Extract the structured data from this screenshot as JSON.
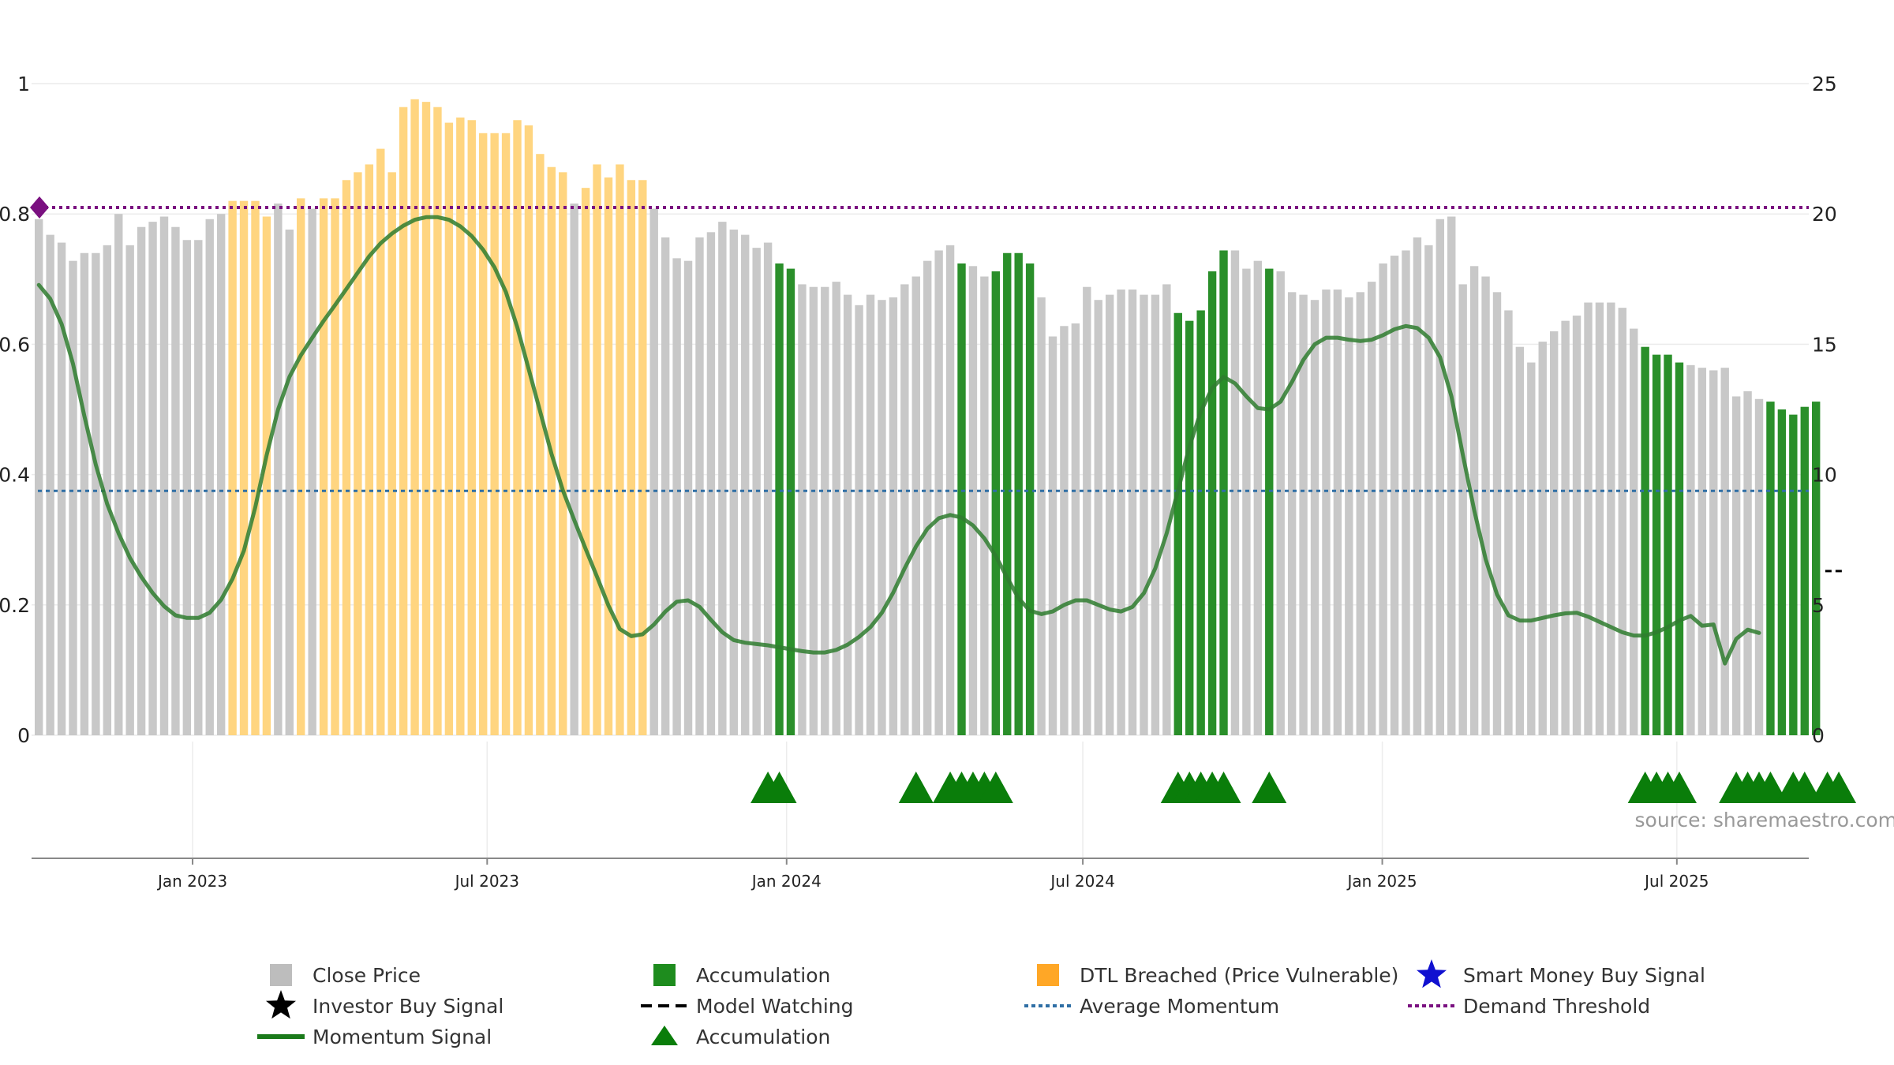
{
  "source_text": "source: sharemaestro.com",
  "chart_data": {
    "type": "bar",
    "left_axis": {
      "ticks": [
        "0",
        "0.2",
        "0.4",
        "0.6",
        "0.8",
        "1"
      ],
      "range": [
        0,
        1
      ]
    },
    "right_axis": {
      "ticks": [
        "0",
        "5",
        "10",
        "15",
        "20",
        "25"
      ],
      "range": [
        0,
        25
      ]
    },
    "x_ticks": [
      {
        "label": "Jan 2023",
        "date": "2023-01-01"
      },
      {
        "label": "Jul 2023",
        "date": "2023-07-01"
      },
      {
        "label": "Jan 2024",
        "date": "2024-01-01"
      },
      {
        "label": "Jul 2024",
        "date": "2024-07-01"
      },
      {
        "label": "Jan 2025",
        "date": "2025-01-01"
      },
      {
        "label": "Jul 2025",
        "date": "2025-07-01"
      }
    ],
    "date_range": [
      "2022-09-26",
      "2025-09-22"
    ],
    "close_price": [
      19.8,
      19.2,
      18.9,
      18.2,
      18.5,
      18.5,
      18.8,
      20.0,
      18.8,
      19.5,
      19.7,
      19.9,
      19.5,
      19.0,
      19.0,
      19.8,
      20.0,
      20.5,
      20.5,
      20.5,
      19.9,
      20.4,
      19.4,
      20.6,
      20.2,
      20.6,
      20.6,
      21.3,
      21.6,
      21.9,
      22.5,
      21.6,
      24.1,
      24.4,
      24.3,
      24.1,
      23.5,
      23.7,
      23.6,
      23.1,
      23.1,
      23.1,
      23.6,
      23.4,
      22.3,
      21.8,
      21.6,
      20.4,
      21.0,
      21.9,
      21.4,
      21.9,
      21.3,
      21.3,
      20.2,
      19.1,
      18.3,
      18.2,
      19.1,
      19.3,
      19.7,
      19.4,
      19.2,
      18.7,
      18.9,
      18.1,
      17.9,
      17.3,
      17.2,
      17.2,
      17.4,
      16.9,
      16.5,
      16.9,
      16.7,
      16.8,
      17.3,
      17.6,
      18.2,
      18.6,
      18.8,
      18.1,
      18.0,
      17.6,
      17.8,
      18.5,
      18.5,
      18.1,
      16.8,
      15.3,
      15.7,
      15.8,
      17.2,
      16.7,
      16.9,
      17.1,
      17.1,
      16.9,
      16.9,
      17.3,
      16.2,
      15.9,
      16.3,
      17.8,
      18.6,
      18.6,
      17.9,
      18.2,
      17.9,
      17.8,
      17.0,
      16.9,
      16.7,
      17.1,
      17.1,
      16.8,
      17.0,
      17.4,
      18.1,
      18.4,
      18.6,
      19.1,
      18.8,
      19.8,
      19.9,
      17.3,
      18.0,
      17.6,
      17.0,
      16.3,
      14.9,
      14.3,
      15.1,
      15.5,
      15.9,
      16.1,
      16.6,
      16.6,
      16.6,
      16.4,
      15.6,
      14.9,
      14.6,
      14.6,
      14.3,
      14.2,
      14.1,
      14.0,
      14.1,
      13.0,
      13.2,
      12.9,
      12.8,
      12.5,
      12.3,
      12.6,
      12.8
    ],
    "bar_types_legend_order": [
      "Close Price",
      "Accumulation",
      "DTL Breached (Price Vulnerable)"
    ],
    "accumulation_bars": [
      65,
      66,
      81,
      84,
      85,
      86,
      87,
      100,
      101,
      102,
      103,
      104,
      108,
      141,
      142,
      143,
      144,
      152,
      153,
      154,
      155,
      156,
      157,
      158
    ],
    "dtl_bars": [
      17,
      18,
      19,
      20,
      23,
      25,
      26,
      27,
      28,
      29,
      30,
      31,
      32,
      33,
      34,
      35,
      36,
      37,
      38,
      39,
      40,
      41,
      42,
      43,
      44,
      45,
      46,
      48,
      49,
      50,
      51,
      52,
      53
    ],
    "momentum_signal": [
      0.691,
      0.67,
      0.631,
      0.57,
      0.49,
      0.415,
      0.355,
      0.31,
      0.272,
      0.243,
      0.218,
      0.198,
      0.184,
      0.18,
      0.18,
      0.188,
      0.208,
      0.24,
      0.283,
      0.35,
      0.43,
      0.5,
      0.55,
      0.583,
      0.61,
      0.636,
      0.66,
      0.685,
      0.71,
      0.735,
      0.755,
      0.77,
      0.782,
      0.791,
      0.795,
      0.795,
      0.791,
      0.781,
      0.766,
      0.745,
      0.718,
      0.68,
      0.626,
      0.562,
      0.497,
      0.432,
      0.376,
      0.33,
      0.286,
      0.243,
      0.199,
      0.163,
      0.152,
      0.155,
      0.17,
      0.19,
      0.205,
      0.207,
      0.197,
      0.177,
      0.158,
      0.146,
      0.142,
      0.14,
      0.138,
      0.135,
      0.132,
      0.129,
      0.127,
      0.127,
      0.131,
      0.139,
      0.151,
      0.166,
      0.188,
      0.219,
      0.256,
      0.29,
      0.317,
      0.333,
      0.338,
      0.334,
      0.322,
      0.302,
      0.275,
      0.242,
      0.21,
      0.191,
      0.186,
      0.19,
      0.2,
      0.207,
      0.207,
      0.2,
      0.193,
      0.19,
      0.197,
      0.218,
      0.256,
      0.31,
      0.376,
      0.443,
      0.497,
      0.533,
      0.55,
      0.54,
      0.52,
      0.502,
      0.5,
      0.512,
      0.542,
      0.576,
      0.6,
      0.61,
      0.61,
      0.607,
      0.605,
      0.607,
      0.614,
      0.623,
      0.628,
      0.625,
      0.61,
      0.58,
      0.52,
      0.43,
      0.345,
      0.27,
      0.216,
      0.184,
      0.176,
      0.176,
      0.18,
      0.184,
      0.187,
      0.188,
      0.182,
      0.174,
      0.166,
      0.158,
      0.153,
      0.153,
      0.158,
      0.166,
      0.176,
      0.183,
      0.168,
      0.17,
      0.11,
      0.148,
      0.162,
      0.157
    ],
    "average_momentum": 0.375,
    "demand_threshold": 0.81,
    "accumulation_signals": [
      64,
      65,
      77,
      80,
      81,
      82,
      83,
      84,
      100,
      101,
      102,
      103,
      104,
      108,
      141,
      142,
      143,
      144,
      149,
      150,
      151,
      152,
      154,
      155,
      157,
      158
    ],
    "model_watching": {
      "bar": 158,
      "value": 6.3
    },
    "legend": {
      "items": [
        {
          "label": "Close Price",
          "icon": "grey-square",
          "color": "#bdbdbd"
        },
        {
          "label": "Accumulation",
          "icon": "green-square",
          "color": "#1e8c1e"
        },
        {
          "label": "DTL Breached (Price Vulnerable)",
          "icon": "orange-square",
          "color": "#ffa726"
        },
        {
          "label": "Smart Money Buy Signal",
          "icon": "blue-star",
          "color": "#1010d0"
        },
        {
          "label": "Investor Buy Signal",
          "icon": "black-star",
          "color": "#000000"
        },
        {
          "label": "Model Watching",
          "icon": "dashed-line",
          "color": "#000000"
        },
        {
          "label": "Average Momentum",
          "icon": "dotted-blue-line",
          "color": "#2f6fa5"
        },
        {
          "label": "Demand Threshold",
          "icon": "dotted-purple-line",
          "color": "#7a1080"
        },
        {
          "label": "Momentum Signal",
          "icon": "green-line",
          "color": "#1a7a1a"
        },
        {
          "label": "Accumulation",
          "icon": "green-triangle",
          "color": "#0a7d0a"
        }
      ]
    }
  }
}
